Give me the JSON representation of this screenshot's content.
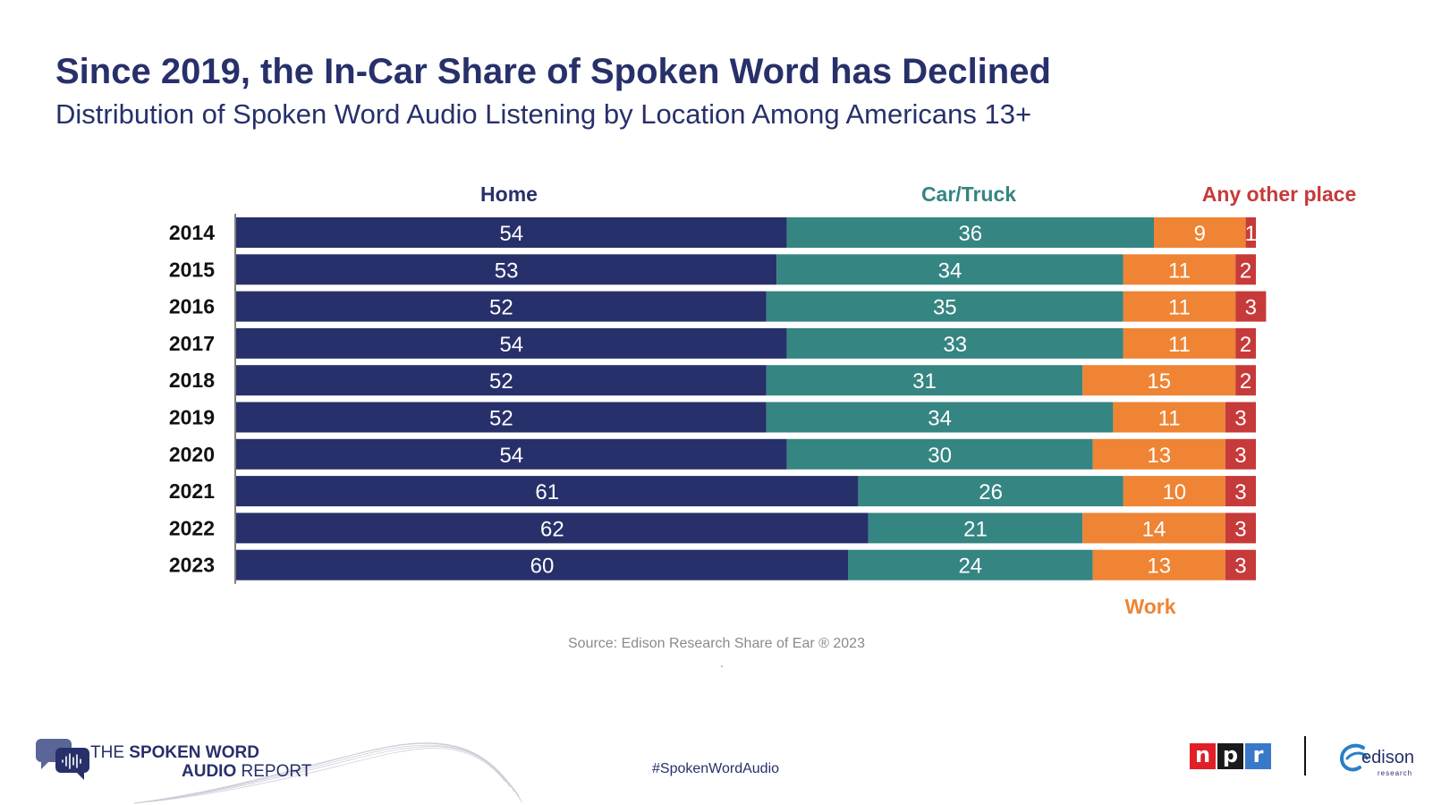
{
  "slide": {
    "title": "Since 2019, the In-Car Share of Spoken Word has Declined",
    "subtitle": "Distribution of Spoken Word Audio Listening by Location Among Americans 13+",
    "source": "Source: Edison Research Share of Ear ® 2023",
    "hashtag": "#SpokenWordAudio",
    "logo_line1_a": "THE ",
    "logo_line1_b": "SPOKEN WORD",
    "logo_line2_a": "AUDIO",
    "logo_line2_b": " REPORT",
    "npr_letters": [
      "n",
      "p",
      "r"
    ],
    "edison_word": "edison",
    "edison_sub": "research"
  },
  "chart_data": {
    "type": "bar",
    "orientation": "horizontal",
    "stacked": true,
    "title": "Since 2019, the In-Car Share of Spoken Word has Declined",
    "subtitle": "Distribution of Spoken Word Audio Listening by Location Among Americans 13+",
    "xlim": [
      0,
      100
    ],
    "xlabel": "",
    "ylabel": "",
    "categories": [
      "2014",
      "2015",
      "2016",
      "2017",
      "2018",
      "2019",
      "2020",
      "2021",
      "2022",
      "2023"
    ],
    "series": [
      {
        "name": "Home",
        "color": "#27306a",
        "label_color": "#27306a",
        "values": [
          54,
          53,
          52,
          54,
          52,
          52,
          54,
          61,
          62,
          60
        ]
      },
      {
        "name": "Car/Truck",
        "color": "#358582",
        "label_color": "#358582",
        "values": [
          36,
          34,
          35,
          33,
          31,
          34,
          30,
          26,
          21,
          24
        ]
      },
      {
        "name": "Work",
        "color": "#ee8434",
        "label_color": "#ee8434",
        "values": [
          9,
          11,
          11,
          11,
          15,
          11,
          13,
          10,
          14,
          13
        ]
      },
      {
        "name": "Any other place",
        "color": "#c73a3a",
        "label_color": "#c73a3a",
        "values": [
          1,
          2,
          3,
          2,
          2,
          3,
          3,
          3,
          3,
          3
        ]
      }
    ],
    "legend_position": "top (Home, Car/Truck, Any other place) and bottom (Work)"
  }
}
